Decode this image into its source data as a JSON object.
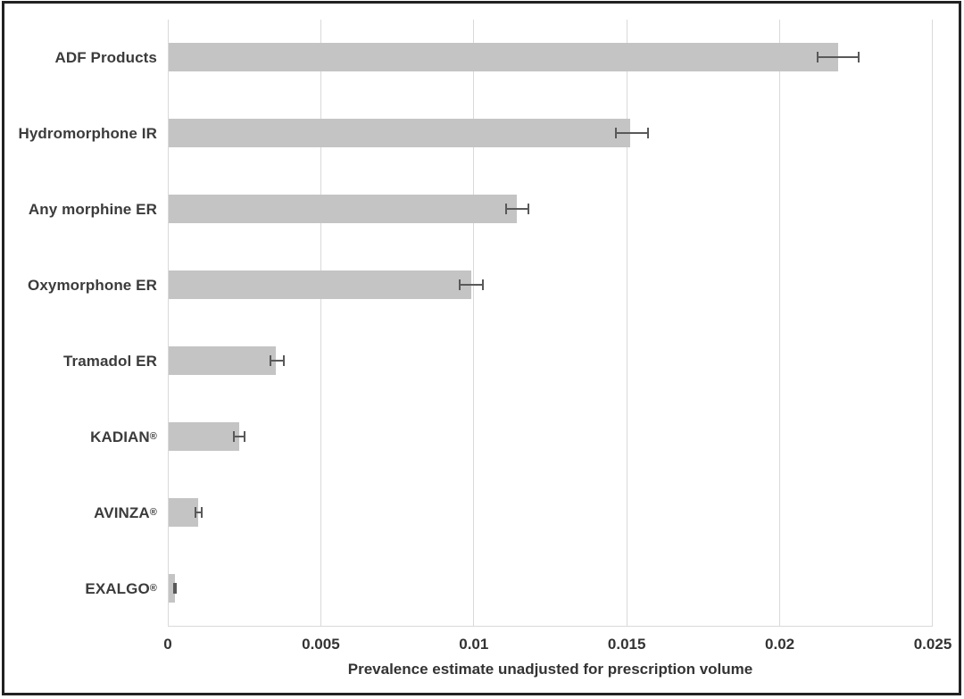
{
  "colors": {
    "bar_fill": "#c4c4c4",
    "error_bar": "#595959",
    "gridline": "#d9d9d9",
    "label_text": "#3b3b3b",
    "frame_border": "#222222",
    "background": "#ffffff"
  },
  "chart_data": {
    "type": "bar",
    "orientation": "horizontal",
    "title": "",
    "xlabel": "Prevalence estimate unadjusted for prescription volume",
    "ylabel": "",
    "xlim": [
      0,
      0.025
    ],
    "x_ticks": [
      0,
      0.005,
      0.01,
      0.015,
      0.02,
      0.025
    ],
    "x_tick_labels": [
      "0",
      "0.005",
      "0.01",
      "0.015",
      "0.02",
      "0.025"
    ],
    "grid": true,
    "legend": false,
    "categories": [
      "ADF Products",
      "Hydromorphone IR",
      "Any morphine ER",
      "Oxymorphone ER",
      "Tramadol ER",
      "KADIAN®",
      "AVINZA®",
      "EXALGO®"
    ],
    "series": [
      {
        "name": "Prevalence estimate",
        "values": [
          0.0219,
          0.0151,
          0.0114,
          0.0099,
          0.0035,
          0.0023,
          0.00095,
          0.0002
        ],
        "error_low": [
          0.0212,
          0.0146,
          0.011,
          0.0095,
          0.0033,
          0.0021,
          0.00085,
          0.00015
        ],
        "error_high": [
          0.0226,
          0.0157,
          0.0118,
          0.0103,
          0.0038,
          0.0025,
          0.0011,
          0.00025
        ]
      }
    ]
  }
}
